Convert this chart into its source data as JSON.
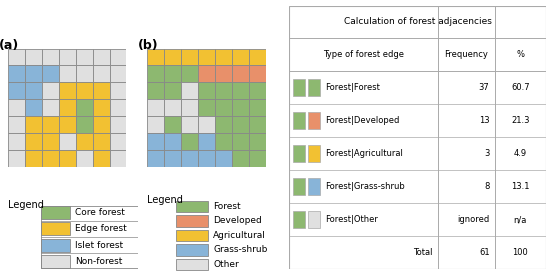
{
  "grid_a": [
    [
      0,
      0,
      0,
      0,
      0,
      0,
      0
    ],
    [
      3,
      3,
      3,
      0,
      0,
      0,
      0
    ],
    [
      3,
      3,
      0,
      2,
      2,
      2,
      0
    ],
    [
      0,
      3,
      0,
      2,
      1,
      2,
      0
    ],
    [
      0,
      2,
      2,
      2,
      1,
      2,
      0
    ],
    [
      0,
      2,
      2,
      0,
      2,
      2,
      0
    ],
    [
      0,
      2,
      2,
      2,
      0,
      2,
      0
    ]
  ],
  "grid_b": [
    [
      2,
      2,
      2,
      2,
      2,
      2,
      2
    ],
    [
      1,
      1,
      1,
      3,
      3,
      3,
      3
    ],
    [
      1,
      1,
      0,
      1,
      1,
      1,
      1
    ],
    [
      0,
      0,
      0,
      1,
      1,
      1,
      1
    ],
    [
      0,
      1,
      0,
      0,
      1,
      1,
      1
    ],
    [
      4,
      4,
      1,
      4,
      1,
      1,
      1
    ],
    [
      4,
      4,
      4,
      4,
      4,
      1,
      1
    ]
  ],
  "colors_a": {
    "0": "#e0e0e0",
    "1": "#8db870",
    "2": "#f2c132",
    "3": "#88b4d8",
    "border": "#888888"
  },
  "colors_b": {
    "0": "#e0e0e0",
    "1": "#8db870",
    "2": "#f2c132",
    "3": "#e8906a",
    "4": "#88b4d8",
    "border": "#888888"
  },
  "legend_a": [
    {
      "label": "Core forest",
      "color": "#8db870"
    },
    {
      "label": "Edge forest",
      "color": "#f2c132"
    },
    {
      "label": "Islet forest",
      "color": "#88b4d8"
    },
    {
      "label": "Non-forest",
      "color": "#e0e0e0"
    }
  ],
  "legend_b": [
    {
      "label": "Forest",
      "color": "#8db870"
    },
    {
      "label": "Developed",
      "color": "#e8906a"
    },
    {
      "label": "Agricultural",
      "color": "#f2c132"
    },
    {
      "label": "Grass-shrub",
      "color": "#88b4d8"
    },
    {
      "label": "Other",
      "color": "#e0e0e0"
    }
  ],
  "table_title": "Calculation of forest adjacencies",
  "table_headers": [
    "Type of forest edge",
    "Frequency",
    "%"
  ],
  "table_rows": [
    {
      "label": "Forest|Forest",
      "color1": "#8db870",
      "color2": "#8db870",
      "freq": "37",
      "pct": "60.7"
    },
    {
      "label": "Forest|Developed",
      "color1": "#8db870",
      "color2": "#e8906a",
      "freq": "13",
      "pct": "21.3"
    },
    {
      "label": "Forest|Agricultural",
      "color1": "#8db870",
      "color2": "#f2c132",
      "freq": "3",
      "pct": "4.9"
    },
    {
      "label": "Forest|Grass-shrub",
      "color1": "#8db870",
      "color2": "#88b4d8",
      "freq": "8",
      "pct": "13.1"
    },
    {
      "label": "Forest|Other",
      "color1": "#8db870",
      "color2": "#e0e0e0",
      "freq": "ignored",
      "pct": "n/a"
    }
  ],
  "table_total": {
    "label": "Total",
    "freq": "61",
    "pct": "100"
  },
  "bg_color": "#ffffff"
}
